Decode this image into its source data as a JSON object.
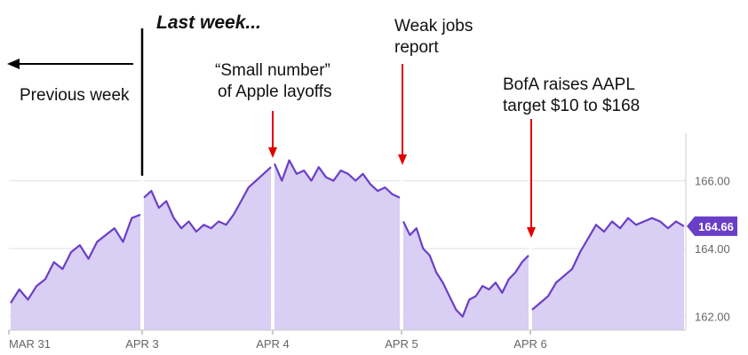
{
  "chart_data": {
    "type": "area",
    "ticker": "AAPL",
    "x_tick_labels": [
      "MAR 31",
      "APR 3",
      "APR 4",
      "APR 5",
      "APR 6"
    ],
    "y_tick_labels": [
      "166.00",
      "164.00",
      "162.00"
    ],
    "y_ticks": [
      166,
      164,
      162
    ],
    "ylim": [
      161.6,
      167.4
    ],
    "last_price": 164.66,
    "last_price_label": "164.66",
    "grid": true,
    "colors": {
      "line": "#6a3fc7",
      "fill": "#d9cef3",
      "grid": "#e0e0e0",
      "arrow": "#e00000",
      "badge": "#6a3fc7"
    },
    "sessions": [
      {
        "label": "MAR 31",
        "prices": [
          162.4,
          162.8,
          162.5,
          162.9,
          163.1,
          163.6,
          163.4,
          163.9,
          164.1,
          163.7,
          164.2,
          164.4,
          164.6,
          164.2,
          164.9,
          165.0
        ]
      },
      {
        "label": "APR 3",
        "prices": [
          165.5,
          165.7,
          165.2,
          165.4,
          164.9,
          164.6,
          164.8,
          164.5,
          164.7,
          164.6,
          164.8,
          164.7,
          165.0,
          165.4,
          165.8,
          166.0,
          166.2,
          166.4
        ]
      },
      {
        "label": "APR 4",
        "prices": [
          166.5,
          166.0,
          166.6,
          166.2,
          166.3,
          166.0,
          166.4,
          166.1,
          166.0,
          166.3,
          166.2,
          166.0,
          166.2,
          165.9,
          165.7,
          165.8,
          165.6,
          165.5
        ]
      },
      {
        "label": "APR 5",
        "prices": [
          164.8,
          164.4,
          164.6,
          164.0,
          163.8,
          163.3,
          163.0,
          162.6,
          162.2,
          162.0,
          162.5,
          162.6,
          162.9,
          162.8,
          163.0,
          162.7,
          163.1,
          163.3,
          163.6,
          163.8
        ]
      },
      {
        "label": "APR 6",
        "prices": [
          162.2,
          162.4,
          162.6,
          163.0,
          163.2,
          163.4,
          163.9,
          164.3,
          164.7,
          164.5,
          164.8,
          164.6,
          164.9,
          164.7,
          164.8,
          164.9,
          164.8,
          164.6,
          164.8,
          164.66
        ]
      }
    ],
    "annotations": {
      "last_week": "Last week...",
      "previous_week": "Previous week",
      "layoffs_line1": "“Small number”",
      "layoffs_line2": "of Apple layoffs",
      "jobs_line1": "Weak jobs",
      "jobs_line2": "report",
      "bofa_line1": "BofA raises AAPL",
      "bofa_line2": "target $10 to $168"
    }
  }
}
